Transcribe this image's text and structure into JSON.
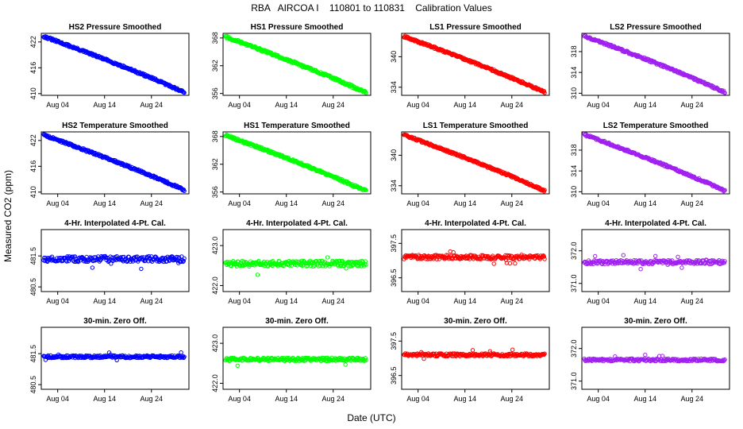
{
  "figure": {
    "title": "RBA   AIRCOA I    110801 to 110831    Calibration Values",
    "xlabel": "Date (UTC)",
    "ylabel": "Measured CO2 (ppm)"
  },
  "x_ticks": [
    "Aug 04",
    "Aug 14",
    "Aug 24"
  ],
  "x_tick_days": [
    4,
    14,
    24
  ],
  "x_range_days": [
    0.5,
    32
  ],
  "colors": {
    "HS2": "#0000ff",
    "HS1": "#00ff00",
    "LS1": "#ff0000",
    "LS2": "#a020f0"
  },
  "chart_data": [
    {
      "type": "scatter",
      "title": "HS2 Pressure Smoothed",
      "series": "HS2",
      "color": "#0000ff",
      "trend": "decline",
      "from": 423.3,
      "to": 410.3,
      "noise": 0.25,
      "ylim": [
        409.6,
        424.0
      ],
      "yticks": [
        "410",
        "416",
        "422"
      ],
      "ytick_values": [
        410,
        416,
        422
      ]
    },
    {
      "type": "scatter",
      "title": "HS1 Pressure Smoothed",
      "series": "HS1",
      "color": "#00ff00",
      "trend": "decline",
      "from": 368.3,
      "to": 356.2,
      "noise": 0.25,
      "ylim": [
        355.6,
        369.0
      ],
      "yticks": [
        "356",
        "362",
        "368"
      ],
      "ytick_values": [
        356,
        362,
        368
      ]
    },
    {
      "type": "scatter",
      "title": "LS1 Pressure Smoothed",
      "series": "LS1",
      "color": "#ff0000",
      "trend": "decline",
      "from": 344.0,
      "to": 333.0,
      "noise": 0.2,
      "ylim": [
        332.4,
        344.6
      ],
      "yticks": [
        "334",
        "340"
      ],
      "ytick_values": [
        334,
        340
      ]
    },
    {
      "type": "scatter",
      "title": "LS2 Pressure Smoothed",
      "series": "LS2",
      "color": "#a020f0",
      "trend": "decline",
      "from": 321.0,
      "to": 310.2,
      "noise": 0.2,
      "ylim": [
        309.6,
        321.5
      ],
      "yticks": [
        "310",
        "314",
        "318"
      ],
      "ytick_values": [
        310,
        314,
        318
      ]
    },
    {
      "type": "scatter",
      "title": "HS2 Temperature Smoothed",
      "series": "HS2",
      "color": "#0000ff",
      "trend": "decline",
      "from": 423.3,
      "to": 410.5,
      "noise": 0.25,
      "ylim": [
        409.6,
        424.0
      ],
      "yticks": [
        "410",
        "416",
        "422"
      ],
      "ytick_values": [
        410,
        416,
        422
      ]
    },
    {
      "type": "scatter",
      "title": "HS1 Temperature Smoothed",
      "series": "HS1",
      "color": "#00ff00",
      "trend": "decline",
      "from": 368.3,
      "to": 356.2,
      "noise": 0.25,
      "ylim": [
        355.6,
        369.0
      ],
      "yticks": [
        "356",
        "362",
        "368"
      ],
      "ytick_values": [
        356,
        362,
        368
      ]
    },
    {
      "type": "scatter",
      "title": "LS1 Temperature Smoothed",
      "series": "LS1",
      "color": "#ff0000",
      "trend": "decline",
      "from": 344.0,
      "to": 333.0,
      "noise": 0.2,
      "ylim": [
        332.4,
        344.6
      ],
      "yticks": [
        "334",
        "340"
      ],
      "ytick_values": [
        334,
        340
      ]
    },
    {
      "type": "scatter",
      "title": "LS2 Temperature Smoothed",
      "series": "LS2",
      "color": "#a020f0",
      "trend": "decline",
      "from": 321.0,
      "to": 310.2,
      "noise": 0.2,
      "ylim": [
        309.6,
        321.5
      ],
      "yticks": [
        "310",
        "314",
        "318"
      ],
      "ytick_values": [
        310,
        314,
        318
      ]
    },
    {
      "type": "scatter",
      "title": "4-Hr. Interpolated 4-Pt. Cal.",
      "series": "HS2",
      "color": "#0000ff",
      "trend": "flat",
      "level": 481.4,
      "noise": 0.09,
      "ylim": [
        480.35,
        482.35
      ],
      "yticks": [
        "480.5",
        "481.5"
      ],
      "ytick_values": [
        480.5,
        481.5
      ]
    },
    {
      "type": "scatter",
      "title": "4-Hr. Interpolated 4-Pt. Cal.",
      "series": "HS1",
      "color": "#00ff00",
      "trend": "flat",
      "level": 422.55,
      "noise": 0.07,
      "ylim": [
        421.85,
        423.4
      ],
      "yticks": [
        "422.0",
        "423.0"
      ],
      "ytick_values": [
        422.0,
        423.0
      ]
    },
    {
      "type": "scatter",
      "title": "4-Hr. Interpolated 4-Pt. Cal.",
      "series": "LS1",
      "color": "#ff0000",
      "trend": "flat",
      "level": 397.1,
      "noise": 0.06,
      "ylim": [
        396.1,
        397.9
      ],
      "yticks": [
        "396.5",
        "397.5"
      ],
      "ytick_values": [
        396.5,
        397.5
      ]
    },
    {
      "type": "scatter",
      "title": "4-Hr. Interpolated 4-Pt. Cal.",
      "series": "LS2",
      "color": "#a020f0",
      "trend": "flat",
      "level": 371.65,
      "noise": 0.06,
      "ylim": [
        370.75,
        372.65
      ],
      "yticks": [
        "371.0",
        "372.0"
      ],
      "ytick_values": [
        371.0,
        372.0
      ]
    },
    {
      "type": "scatter",
      "title": "30-min. Zero Off.",
      "series": "HS2",
      "color": "#0000ff",
      "trend": "flat",
      "level": 481.4,
      "noise": 0.04,
      "ylim": [
        480.35,
        482.35
      ],
      "yticks": [
        "480.5",
        "481.5"
      ],
      "ytick_values": [
        480.5,
        481.5
      ]
    },
    {
      "type": "scatter",
      "title": "30-min. Zero Off.",
      "series": "HS1",
      "color": "#00ff00",
      "trend": "flat",
      "level": 422.6,
      "noise": 0.04,
      "ylim": [
        421.85,
        423.4
      ],
      "yticks": [
        "422.0",
        "423.0"
      ],
      "ytick_values": [
        422.0,
        423.0
      ]
    },
    {
      "type": "scatter",
      "title": "30-min. Zero Off.",
      "series": "LS1",
      "color": "#ff0000",
      "trend": "flat",
      "level": 397.1,
      "noise": 0.04,
      "ylim": [
        396.1,
        397.9
      ],
      "yticks": [
        "396.5",
        "397.5"
      ],
      "ytick_values": [
        396.5,
        397.5
      ]
    },
    {
      "type": "scatter",
      "title": "30-min. Zero Off.",
      "series": "LS2",
      "color": "#a020f0",
      "trend": "flat",
      "level": 371.65,
      "noise": 0.04,
      "ylim": [
        370.75,
        372.65
      ],
      "yticks": [
        "371.0",
        "372.0"
      ],
      "ytick_values": [
        371.0,
        372.0
      ]
    }
  ]
}
